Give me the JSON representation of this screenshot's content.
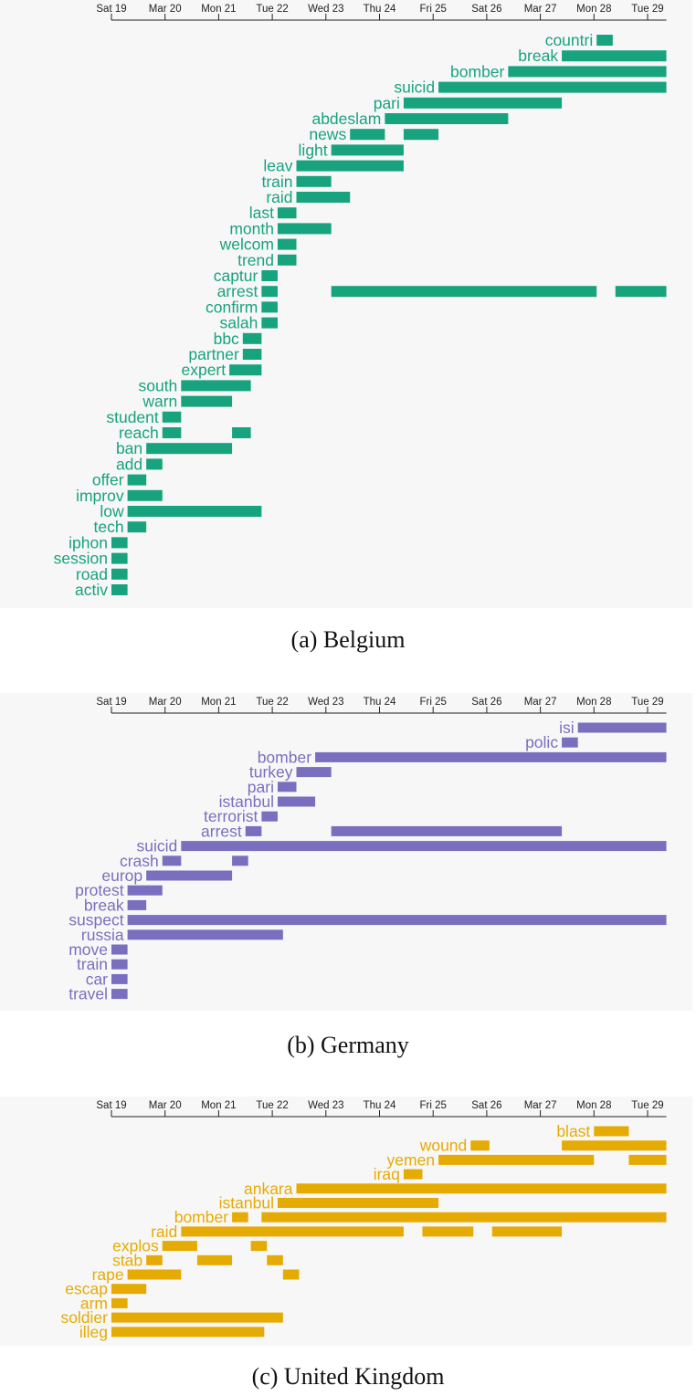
{
  "chart_data": [
    {
      "type": "bar",
      "subtype": "timeline",
      "title": "(a) Belgium",
      "color": "#17a37e",
      "x_ticks": [
        "Sat 19",
        "Mar 20",
        "Mon 21",
        "Tue 22",
        "Wed 23",
        "Thu 24",
        "Fri 25",
        "Sat 26",
        "Mar 27",
        "Mon 28",
        "Tue 29"
      ],
      "xlim": [
        0,
        10.35
      ],
      "series": [
        {
          "name": "countri",
          "intervals": [
            [
              9.05,
              9.35
            ]
          ]
        },
        {
          "name": "break",
          "intervals": [
            [
              8.4,
              10.35
            ]
          ]
        },
        {
          "name": "bomber",
          "intervals": [
            [
              7.4,
              10.35
            ]
          ]
        },
        {
          "name": "suicid",
          "intervals": [
            [
              6.1,
              10.35
            ]
          ]
        },
        {
          "name": "pari",
          "intervals": [
            [
              5.45,
              8.4
            ]
          ]
        },
        {
          "name": "abdeslam",
          "intervals": [
            [
              5.1,
              7.4
            ]
          ]
        },
        {
          "name": "news",
          "intervals": [
            [
              4.45,
              5.1
            ],
            [
              5.45,
              6.1
            ]
          ]
        },
        {
          "name": "light",
          "intervals": [
            [
              4.1,
              5.45
            ]
          ]
        },
        {
          "name": "leav",
          "intervals": [
            [
              3.45,
              5.45
            ]
          ]
        },
        {
          "name": "train",
          "intervals": [
            [
              3.45,
              4.1
            ]
          ]
        },
        {
          "name": "raid",
          "intervals": [
            [
              3.45,
              4.45
            ]
          ]
        },
        {
          "name": "last",
          "intervals": [
            [
              3.1,
              3.45
            ]
          ]
        },
        {
          "name": "month",
          "intervals": [
            [
              3.1,
              4.1
            ]
          ]
        },
        {
          "name": "welcom",
          "intervals": [
            [
              3.1,
              3.45
            ]
          ]
        },
        {
          "name": "trend",
          "intervals": [
            [
              3.1,
              3.45
            ]
          ]
        },
        {
          "name": "captur",
          "intervals": [
            [
              2.8,
              3.1
            ]
          ]
        },
        {
          "name": "arrest",
          "intervals": [
            [
              2.8,
              3.1
            ],
            [
              4.1,
              9.05
            ],
            [
              9.4,
              10.35
            ]
          ]
        },
        {
          "name": "confirm",
          "intervals": [
            [
              2.8,
              3.1
            ]
          ]
        },
        {
          "name": "salah",
          "intervals": [
            [
              2.8,
              3.1
            ]
          ]
        },
        {
          "name": "bbc",
          "intervals": [
            [
              2.45,
              2.8
            ]
          ]
        },
        {
          "name": "partner",
          "intervals": [
            [
              2.45,
              2.8
            ]
          ]
        },
        {
          "name": "expert",
          "intervals": [
            [
              2.2,
              2.8
            ]
          ]
        },
        {
          "name": "south",
          "intervals": [
            [
              1.3,
              2.6
            ]
          ]
        },
        {
          "name": "warn",
          "intervals": [
            [
              1.3,
              2.25
            ]
          ]
        },
        {
          "name": "student",
          "intervals": [
            [
              0.95,
              1.3
            ]
          ]
        },
        {
          "name": "reach",
          "intervals": [
            [
              0.95,
              1.3
            ],
            [
              2.25,
              2.6
            ]
          ]
        },
        {
          "name": "ban",
          "intervals": [
            [
              0.65,
              2.25
            ]
          ]
        },
        {
          "name": "add",
          "intervals": [
            [
              0.65,
              0.95
            ]
          ]
        },
        {
          "name": "offer",
          "intervals": [
            [
              0.3,
              0.65
            ]
          ]
        },
        {
          "name": "improv",
          "intervals": [
            [
              0.3,
              0.95
            ]
          ]
        },
        {
          "name": "low",
          "intervals": [
            [
              0.3,
              2.8
            ]
          ]
        },
        {
          "name": "tech",
          "intervals": [
            [
              0.3,
              0.65
            ]
          ]
        },
        {
          "name": "iphon",
          "intervals": [
            [
              0,
              0.3
            ]
          ]
        },
        {
          "name": "session",
          "intervals": [
            [
              0,
              0.3
            ]
          ]
        },
        {
          "name": "road",
          "intervals": [
            [
              0,
              0.3
            ]
          ]
        },
        {
          "name": "activ",
          "intervals": [
            [
              0,
              0.3
            ]
          ]
        }
      ]
    },
    {
      "type": "bar",
      "subtype": "timeline",
      "title": "(b) Germany",
      "color": "#7a6fbf",
      "x_ticks": [
        "Sat 19",
        "Mar 20",
        "Mon 21",
        "Tue 22",
        "Wed 23",
        "Thu 24",
        "Fri 25",
        "Sat 26",
        "Mar 27",
        "Mon 28",
        "Tue 29"
      ],
      "xlim": [
        0,
        10.35
      ],
      "series": [
        {
          "name": "isi",
          "intervals": [
            [
              8.7,
              10.35
            ]
          ]
        },
        {
          "name": "polic",
          "intervals": [
            [
              8.4,
              8.7
            ]
          ]
        },
        {
          "name": "bomber",
          "intervals": [
            [
              3.8,
              10.35
            ]
          ]
        },
        {
          "name": "turkey",
          "intervals": [
            [
              3.45,
              4.1
            ]
          ]
        },
        {
          "name": "pari",
          "intervals": [
            [
              3.1,
              3.45
            ]
          ]
        },
        {
          "name": "istanbul",
          "intervals": [
            [
              3.1,
              3.8
            ]
          ]
        },
        {
          "name": "terrorist",
          "intervals": [
            [
              2.8,
              3.1
            ]
          ]
        },
        {
          "name": "arrest",
          "intervals": [
            [
              2.5,
              2.8
            ],
            [
              4.1,
              8.4
            ]
          ]
        },
        {
          "name": "suicid",
          "intervals": [
            [
              1.3,
              10.35
            ]
          ]
        },
        {
          "name": "crash",
          "intervals": [
            [
              0.95,
              1.3
            ],
            [
              2.25,
              2.55
            ]
          ]
        },
        {
          "name": "europ",
          "intervals": [
            [
              0.65,
              2.25
            ]
          ]
        },
        {
          "name": "protest",
          "intervals": [
            [
              0.3,
              0.95
            ]
          ]
        },
        {
          "name": "break",
          "intervals": [
            [
              0.3,
              0.65
            ]
          ]
        },
        {
          "name": "suspect",
          "intervals": [
            [
              0.3,
              10.35
            ]
          ]
        },
        {
          "name": "russia",
          "intervals": [
            [
              0.3,
              3.2
            ]
          ]
        },
        {
          "name": "move",
          "intervals": [
            [
              0,
              0.3
            ]
          ]
        },
        {
          "name": "train",
          "intervals": [
            [
              0,
              0.3
            ]
          ]
        },
        {
          "name": "car",
          "intervals": [
            [
              0,
              0.3
            ]
          ]
        },
        {
          "name": "travel",
          "intervals": [
            [
              0,
              0.3
            ]
          ]
        }
      ]
    },
    {
      "type": "bar",
      "subtype": "timeline",
      "title": "(c) United Kingdom",
      "color": "#e6ab02",
      "x_ticks": [
        "Sat 19",
        "Mar 20",
        "Mon 21",
        "Tue 22",
        "Wed 23",
        "Thu 24",
        "Fri 25",
        "Sat 26",
        "Mar 27",
        "Mon 28",
        "Tue 29"
      ],
      "xlim": [
        0,
        10.35
      ],
      "series": [
        {
          "name": "blast",
          "intervals": [
            [
              9.0,
              9.65
            ]
          ]
        },
        {
          "name": "wound",
          "intervals": [
            [
              6.7,
              7.05
            ],
            [
              8.4,
              10.35
            ]
          ]
        },
        {
          "name": "yemen",
          "intervals": [
            [
              6.1,
              9.0
            ],
            [
              9.65,
              10.35
            ]
          ]
        },
        {
          "name": "iraq",
          "intervals": [
            [
              5.45,
              5.8
            ]
          ]
        },
        {
          "name": "ankara",
          "intervals": [
            [
              3.45,
              10.35
            ]
          ]
        },
        {
          "name": "istanbul",
          "intervals": [
            [
              3.1,
              6.1
            ]
          ]
        },
        {
          "name": "bomber",
          "intervals": [
            [
              2.25,
              2.55
            ],
            [
              2.8,
              10.35
            ]
          ]
        },
        {
          "name": "raid",
          "intervals": [
            [
              1.3,
              5.45
            ],
            [
              5.8,
              6.75
            ],
            [
              7.1,
              8.4
            ]
          ]
        },
        {
          "name": "explos",
          "intervals": [
            [
              0.95,
              1.6
            ],
            [
              2.6,
              2.9
            ]
          ]
        },
        {
          "name": "stab",
          "intervals": [
            [
              0.65,
              0.95
            ],
            [
              1.6,
              2.25
            ],
            [
              2.9,
              3.2
            ]
          ]
        },
        {
          "name": "rape",
          "intervals": [
            [
              0.3,
              1.3
            ],
            [
              3.2,
              3.5
            ]
          ]
        },
        {
          "name": "escap",
          "intervals": [
            [
              0,
              0.65
            ]
          ]
        },
        {
          "name": "arm",
          "intervals": [
            [
              0,
              0.3
            ]
          ]
        },
        {
          "name": "soldier",
          "intervals": [
            [
              0,
              3.2
            ]
          ]
        },
        {
          "name": "illeg",
          "intervals": [
            [
              0,
              2.85
            ]
          ]
        }
      ]
    }
  ]
}
